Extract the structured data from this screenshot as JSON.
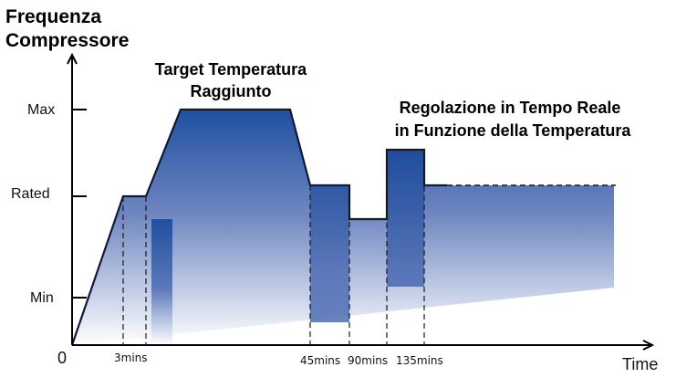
{
  "title": {
    "line1": "Frequenza",
    "line2": "Compressore"
  },
  "x_axis_label": "Time",
  "origin_label": "0",
  "y_ticks": {
    "max": "Max",
    "rated": "Rated",
    "min": "Min"
  },
  "x_ticks": {
    "t3": "3mins",
    "t45": "45mins",
    "t90": "90mins",
    "t135": "135mins"
  },
  "annotations": {
    "target_line1": "Target Temperatura",
    "target_line2": "Raggiunto",
    "realtime_line1": "Regolazione in Tempo Reale",
    "realtime_line2": "in Funzione della Temperatura"
  },
  "colors": {
    "fill_top": "#1e4fa0",
    "fill_bottom": "#ffffff",
    "outline": "#0d1a3a",
    "axis": "#000000"
  }
}
